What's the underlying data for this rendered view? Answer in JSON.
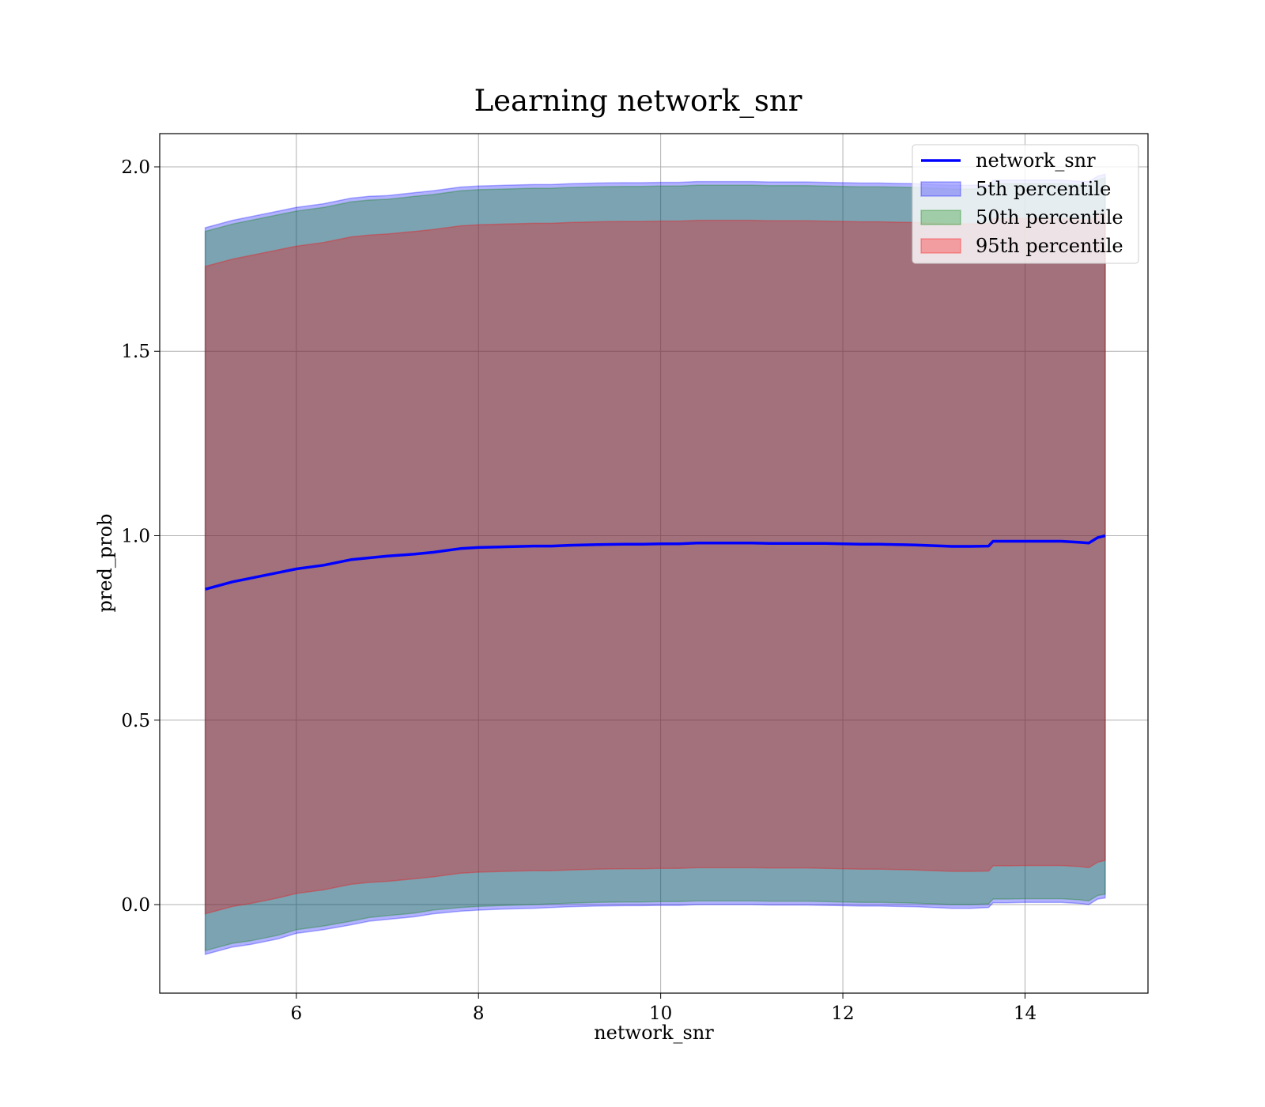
{
  "chart_data": {
    "type": "area",
    "title": "Learning network_snr",
    "xlabel": "network_snr",
    "ylabel": "pred_prob",
    "xlim": [
      4.5,
      15.35
    ],
    "ylim": [
      -0.24,
      2.09
    ],
    "xticks": [
      6,
      8,
      10,
      12,
      14
    ],
    "yticks": [
      0.0,
      0.5,
      1.0,
      1.5,
      2.0
    ],
    "xtick_labels": [
      "6",
      "8",
      "10",
      "12",
      "14"
    ],
    "ytick_labels": [
      "0.0",
      "0.5",
      "1.0",
      "1.5",
      "2.0"
    ],
    "grid": true,
    "legend_position": "upper right",
    "x": [
      5.0,
      5.3,
      5.5,
      5.8,
      6.0,
      6.3,
      6.6,
      6.8,
      7.0,
      7.3,
      7.5,
      7.8,
      8.0,
      8.3,
      8.6,
      8.8,
      9.0,
      9.3,
      9.6,
      9.8,
      10.0,
      10.2,
      10.4,
      10.6,
      10.8,
      11.0,
      11.2,
      11.4,
      11.6,
      11.8,
      12.0,
      12.2,
      12.4,
      12.6,
      12.8,
      13.0,
      13.2,
      13.4,
      13.6,
      13.65,
      13.8,
      14.0,
      14.2,
      14.4,
      14.6,
      14.7,
      14.8,
      14.88
    ],
    "series": [
      {
        "name": "network_snr",
        "kind": "line",
        "color": "#0000ff",
        "values": [
          0.855,
          0.875,
          0.885,
          0.9,
          0.91,
          0.92,
          0.935,
          0.94,
          0.945,
          0.95,
          0.955,
          0.965,
          0.968,
          0.97,
          0.972,
          0.972,
          0.974,
          0.976,
          0.977,
          0.977,
          0.978,
          0.978,
          0.98,
          0.98,
          0.98,
          0.98,
          0.979,
          0.979,
          0.979,
          0.979,
          0.978,
          0.977,
          0.977,
          0.976,
          0.975,
          0.973,
          0.971,
          0.971,
          0.972,
          0.985,
          0.985,
          0.985,
          0.985,
          0.985,
          0.982,
          0.98,
          0.995,
          1.0
        ]
      },
      {
        "name": "5th percentile",
        "kind": "band",
        "color": "#0000ff",
        "lower": [
          -0.135,
          -0.115,
          -0.108,
          -0.093,
          -0.078,
          -0.068,
          -0.055,
          -0.045,
          -0.04,
          -0.033,
          -0.025,
          -0.018,
          -0.015,
          -0.012,
          -0.01,
          -0.008,
          -0.006,
          -0.004,
          -0.003,
          -0.003,
          -0.002,
          -0.002,
          0.0,
          0.0,
          0.0,
          0.0,
          -0.001,
          -0.001,
          -0.001,
          -0.002,
          -0.003,
          -0.004,
          -0.004,
          -0.005,
          -0.006,
          -0.008,
          -0.01,
          -0.01,
          -0.008,
          0.005,
          0.005,
          0.006,
          0.006,
          0.006,
          0.003,
          0.0,
          0.015,
          0.018
        ],
        "upper": [
          1.835,
          1.855,
          1.865,
          1.88,
          1.89,
          1.9,
          1.915,
          1.92,
          1.922,
          1.93,
          1.935,
          1.945,
          1.948,
          1.95,
          1.952,
          1.952,
          1.954,
          1.956,
          1.957,
          1.957,
          1.958,
          1.958,
          1.96,
          1.96,
          1.96,
          1.96,
          1.959,
          1.959,
          1.959,
          1.958,
          1.957,
          1.956,
          1.956,
          1.955,
          1.954,
          1.952,
          1.95,
          1.95,
          1.951,
          1.964,
          1.964,
          1.964,
          1.964,
          1.964,
          1.961,
          1.96,
          1.975,
          1.98
        ]
      },
      {
        "name": "50th percentile",
        "kind": "band",
        "color": "#008000",
        "lower": [
          -0.125,
          -0.105,
          -0.098,
          -0.083,
          -0.068,
          -0.058,
          -0.045,
          -0.035,
          -0.03,
          -0.023,
          -0.015,
          -0.008,
          -0.005,
          -0.002,
          0.0,
          0.002,
          0.004,
          0.006,
          0.007,
          0.007,
          0.008,
          0.008,
          0.01,
          0.01,
          0.01,
          0.01,
          0.009,
          0.009,
          0.009,
          0.008,
          0.007,
          0.006,
          0.006,
          0.005,
          0.004,
          0.002,
          0.0,
          0.0,
          0.002,
          0.015,
          0.015,
          0.016,
          0.016,
          0.016,
          0.013,
          0.01,
          0.025,
          0.028
        ],
        "upper": [
          1.825,
          1.845,
          1.855,
          1.87,
          1.88,
          1.89,
          1.905,
          1.91,
          1.912,
          1.92,
          1.925,
          1.935,
          1.938,
          1.94,
          1.942,
          1.942,
          1.944,
          1.946,
          1.947,
          1.947,
          1.948,
          1.948,
          1.95,
          1.95,
          1.95,
          1.95,
          1.949,
          1.949,
          1.949,
          1.948,
          1.947,
          1.946,
          1.946,
          1.945,
          1.944,
          1.942,
          1.94,
          1.94,
          1.941,
          1.954,
          1.954,
          1.954,
          1.954,
          1.954,
          1.951,
          1.95,
          1.965,
          1.97
        ]
      },
      {
        "name": "95th percentile",
        "kind": "band",
        "color": "#ff0000",
        "lower": [
          -0.025,
          -0.005,
          0.003,
          0.018,
          0.03,
          0.04,
          0.055,
          0.06,
          0.063,
          0.07,
          0.075,
          0.085,
          0.088,
          0.09,
          0.092,
          0.092,
          0.094,
          0.096,
          0.097,
          0.097,
          0.098,
          0.098,
          0.1,
          0.1,
          0.1,
          0.1,
          0.099,
          0.099,
          0.099,
          0.098,
          0.097,
          0.096,
          0.096,
          0.095,
          0.094,
          0.092,
          0.09,
          0.09,
          0.091,
          0.105,
          0.105,
          0.106,
          0.106,
          0.106,
          0.103,
          0.1,
          0.115,
          0.12
        ],
        "upper": [
          1.73,
          1.75,
          1.76,
          1.775,
          1.785,
          1.795,
          1.81,
          1.815,
          1.818,
          1.825,
          1.83,
          1.84,
          1.843,
          1.845,
          1.847,
          1.847,
          1.849,
          1.851,
          1.852,
          1.852,
          1.853,
          1.853,
          1.855,
          1.855,
          1.855,
          1.855,
          1.854,
          1.854,
          1.854,
          1.853,
          1.852,
          1.851,
          1.851,
          1.85,
          1.849,
          1.847,
          1.845,
          1.845,
          1.846,
          1.86,
          1.86,
          1.86,
          1.86,
          1.86,
          1.857,
          1.855,
          1.87,
          1.875
        ]
      }
    ]
  }
}
